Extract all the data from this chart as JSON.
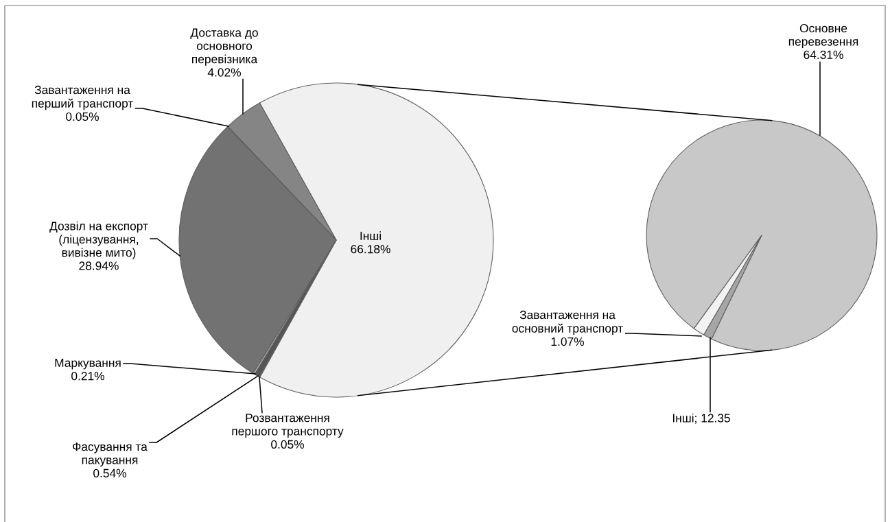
{
  "chart_data": [
    {
      "type": "pie",
      "categories": [
        "Інші",
        "Доставка до основного перевізника",
        "Завантаження на перший транспорт",
        "Дозвіл на експорт (ліцензування, вивізне мито)",
        "Маркування",
        "Фасування та пакування",
        "Розвантаження першого транспорту"
      ],
      "values": [
        66.18,
        4.02,
        0.05,
        28.94,
        0.21,
        0.54,
        0.05
      ],
      "value_labels": [
        "66.18%",
        "4.02%",
        "0.05%",
        "28.94%",
        "0.21%",
        "0.54%",
        "0.05%"
      ],
      "colors": [
        "#f0f0f0",
        "#858585",
        "#8e8e8e",
        "#727272",
        "#a6a6a6",
        "#555555",
        "#a0a0a0"
      ]
    },
    {
      "type": "pie",
      "categories": [
        "Основне перевезення",
        "Завантаження на основний транспорт",
        "Інші; 12.35"
      ],
      "values": [
        64.31,
        1.07,
        0.8
      ],
      "value_labels": [
        "64.31%",
        "1.07%",
        null
      ],
      "colors": [
        "#c8c8c8",
        "#f2f2f2",
        "#a6a6a6"
      ]
    }
  ]
}
